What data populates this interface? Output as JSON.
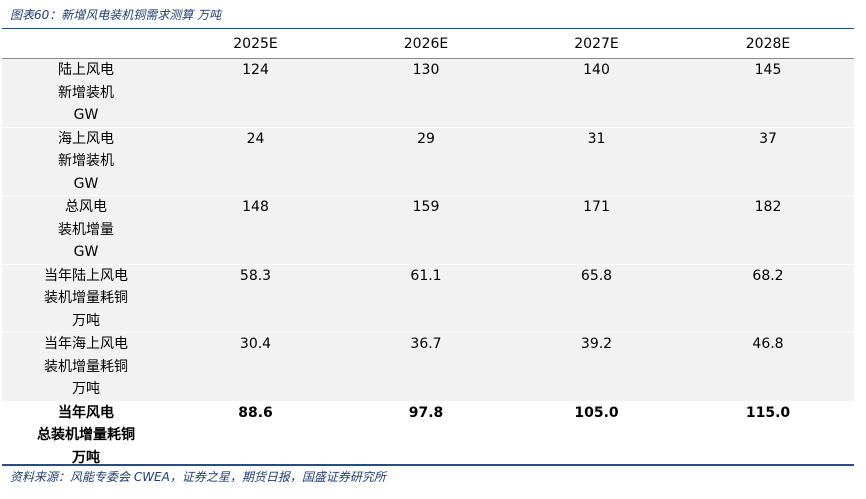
{
  "caption": "图表60：新增风电装机铜需求测算 万吨",
  "columns": [
    "",
    "2025E",
    "2026E",
    "2027E",
    "2028E"
  ],
  "rows": [
    {
      "label": [
        "陆上风电",
        "新增装机",
        "GW"
      ],
      "values": [
        "124",
        "130",
        "140",
        "145"
      ]
    },
    {
      "label": [
        "海上风电",
        "新增装机",
        "GW"
      ],
      "values": [
        "24",
        "29",
        "31",
        "37"
      ]
    },
    {
      "label": [
        "总风电",
        "装机增量",
        "GW"
      ],
      "values": [
        "148",
        "159",
        "171",
        "182"
      ]
    },
    {
      "label": [
        "当年陆上风电",
        "装机增量耗铜",
        "万吨"
      ],
      "values": [
        "58.3",
        "61.1",
        "65.8",
        "68.2"
      ]
    },
    {
      "label": [
        "当年海上风电",
        "装机增量耗铜",
        "万吨"
      ],
      "values": [
        "30.4",
        "36.7",
        "39.2",
        "46.8"
      ]
    },
    {
      "label": [
        "当年风电",
        "总装机增量耗铜",
        "万吨"
      ],
      "values": [
        "88.6",
        "97.8",
        "105.0",
        "115.0"
      ]
    }
  ],
  "source": "资料来源：风能专委会 CWEA，证券之星，期货日报，国盛证券研究所",
  "colors": {
    "caption": "#1f3c73",
    "rule": "#2b4a86",
    "row_shade": "#f2f2f2"
  }
}
